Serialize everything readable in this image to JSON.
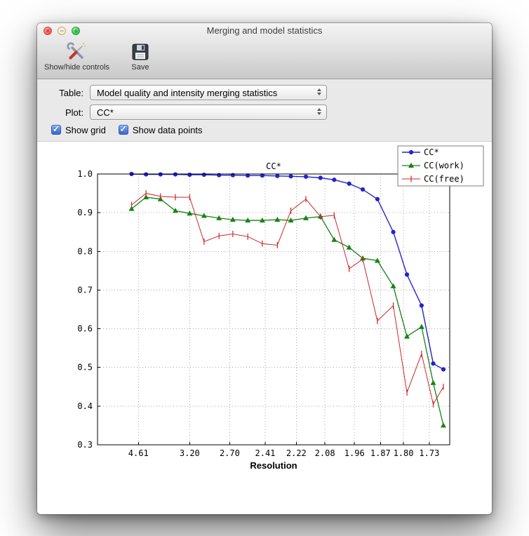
{
  "window": {
    "title": "Merging and model statistics"
  },
  "titlebar_icons": {
    "close": "×",
    "minimize": "−",
    "zoom": "+"
  },
  "toolbar": {
    "items": [
      {
        "label": "Show/hide controls"
      },
      {
        "label": "Save"
      }
    ]
  },
  "controls": {
    "table_label": "Table:",
    "table_value": "Model quality and intensity merging statistics",
    "plot_label": "Plot:",
    "plot_value": "CC*",
    "checkboxes": [
      {
        "label": "Show grid",
        "checked": true
      },
      {
        "label": "Show data points",
        "checked": true
      }
    ]
  },
  "icons": {
    "check": "✓"
  },
  "chart_data": {
    "type": "line",
    "title": "CC*",
    "xlabel": "Resolution",
    "ylabel": "",
    "ylim": [
      0.3,
      1.0
    ],
    "yticks": [
      1.0,
      0.9,
      0.8,
      0.7,
      0.6,
      0.5,
      0.4,
      0.3
    ],
    "xticks": [
      4.61,
      3.2,
      2.7,
      2.41,
      2.22,
      2.08,
      1.96,
      1.87,
      1.8,
      1.73
    ],
    "xlim_resolution": [
      12.2,
      1.68
    ],
    "x_axis_scale": "1/d^2",
    "grid": true,
    "show_data_points": true,
    "legend_position": "upper right",
    "x_resolution": [
      4.98,
      4.28,
      3.81,
      3.46,
      3.2,
      2.99,
      2.81,
      2.67,
      2.54,
      2.43,
      2.33,
      2.25,
      2.17,
      2.1,
      2.04,
      1.98,
      1.93,
      1.88,
      1.83,
      1.79,
      1.75,
      1.72,
      1.695
    ],
    "series": [
      {
        "name": "CC*",
        "color": "#2323cc",
        "marker": "circle",
        "line_width": 1.4,
        "values": [
          1.0,
          0.999,
          0.999,
          0.999,
          0.998,
          0.998,
          0.997,
          0.997,
          0.996,
          0.996,
          0.995,
          0.994,
          0.993,
          0.99,
          0.985,
          0.975,
          0.96,
          0.935,
          0.85,
          0.74,
          0.66,
          0.51,
          0.495
        ]
      },
      {
        "name": "CC(work)",
        "color": "#168316",
        "marker": "triangle",
        "line_width": 1.3,
        "values": [
          0.91,
          0.94,
          0.935,
          0.905,
          0.898,
          0.892,
          0.886,
          0.882,
          0.88,
          0.88,
          0.882,
          0.88,
          0.886,
          0.89,
          0.83,
          0.81,
          0.782,
          0.776,
          0.71,
          0.58,
          0.605,
          0.46,
          0.35
        ]
      },
      {
        "name": "CC(free)",
        "color": "#cc2727",
        "marker": "vline",
        "line_width": 1,
        "values": [
          0.92,
          0.95,
          0.942,
          0.94,
          0.94,
          0.825,
          0.84,
          0.845,
          0.838,
          0.82,
          0.816,
          0.905,
          0.935,
          0.89,
          0.893,
          0.755,
          0.78,
          0.62,
          0.66,
          0.435,
          0.535,
          0.405,
          0.45
        ]
      }
    ]
  }
}
